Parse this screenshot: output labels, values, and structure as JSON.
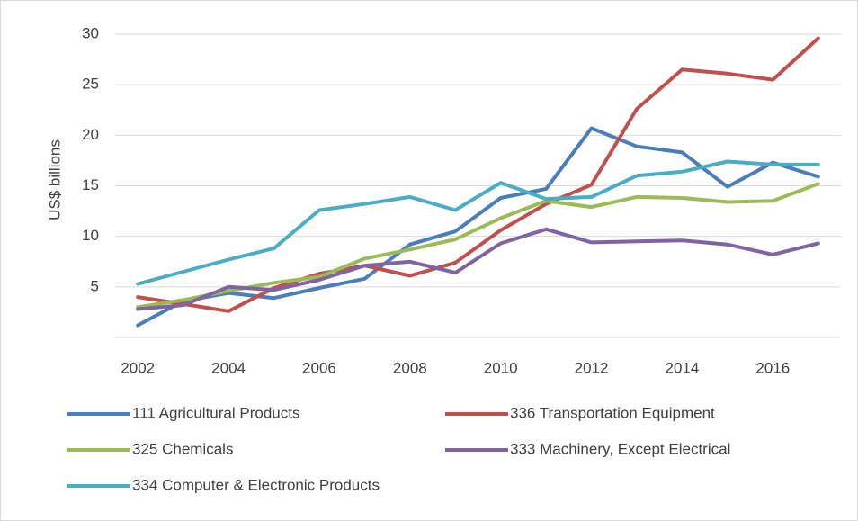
{
  "chart_data": {
    "type": "line",
    "y_label": "US$ billions",
    "categories": [
      2002,
      null,
      2004,
      null,
      2006,
      null,
      2008,
      null,
      2010,
      null,
      2012,
      null,
      2014,
      null,
      2016,
      null
    ],
    "series": [
      {
        "name": "111 Agricultural Products",
        "color": "#4a7ebb",
        "values": [
          1.2,
          3.6,
          4.4,
          3.9,
          4.9,
          5.8,
          9.2,
          10.5,
          13.8,
          14.7,
          20.7,
          18.9,
          18.3,
          14.9,
          17.3,
          15.9
        ]
      },
      {
        "name": "336 Transportation Equipment",
        "color": "#c0504d",
        "values": [
          4.0,
          3.3,
          2.6,
          4.9,
          6.3,
          7.1,
          6.1,
          7.4,
          10.6,
          13.2,
          15.1,
          22.6,
          26.5,
          26.1,
          25.5,
          29.6
        ]
      },
      {
        "name": "325 Chemicals",
        "color": "#9bbb59",
        "values": [
          3.0,
          3.7,
          4.6,
          5.4,
          6.0,
          7.8,
          8.7,
          9.7,
          11.8,
          13.5,
          12.9,
          13.9,
          13.8,
          13.4,
          13.5,
          15.2
        ]
      },
      {
        "name": "333 Machinery, Except Electrical",
        "color": "#8064a2",
        "values": [
          2.8,
          3.2,
          5.0,
          4.7,
          5.7,
          7.1,
          7.5,
          6.4,
          9.3,
          10.7,
          9.4,
          9.5,
          9.6,
          9.2,
          8.2,
          9.3
        ]
      },
      {
        "name": "334 Computer & Electronic Products",
        "color": "#4bacc6",
        "values": [
          5.3,
          6.5,
          7.7,
          8.8,
          12.6,
          13.2,
          13.9,
          12.6,
          15.3,
          13.7,
          13.9,
          16.0,
          16.4,
          17.4,
          17.1,
          17.1
        ]
      }
    ],
    "ylim": [
      0,
      30
    ],
    "yticks": [
      5,
      10,
      15,
      20,
      25,
      30
    ],
    "grid": true
  }
}
